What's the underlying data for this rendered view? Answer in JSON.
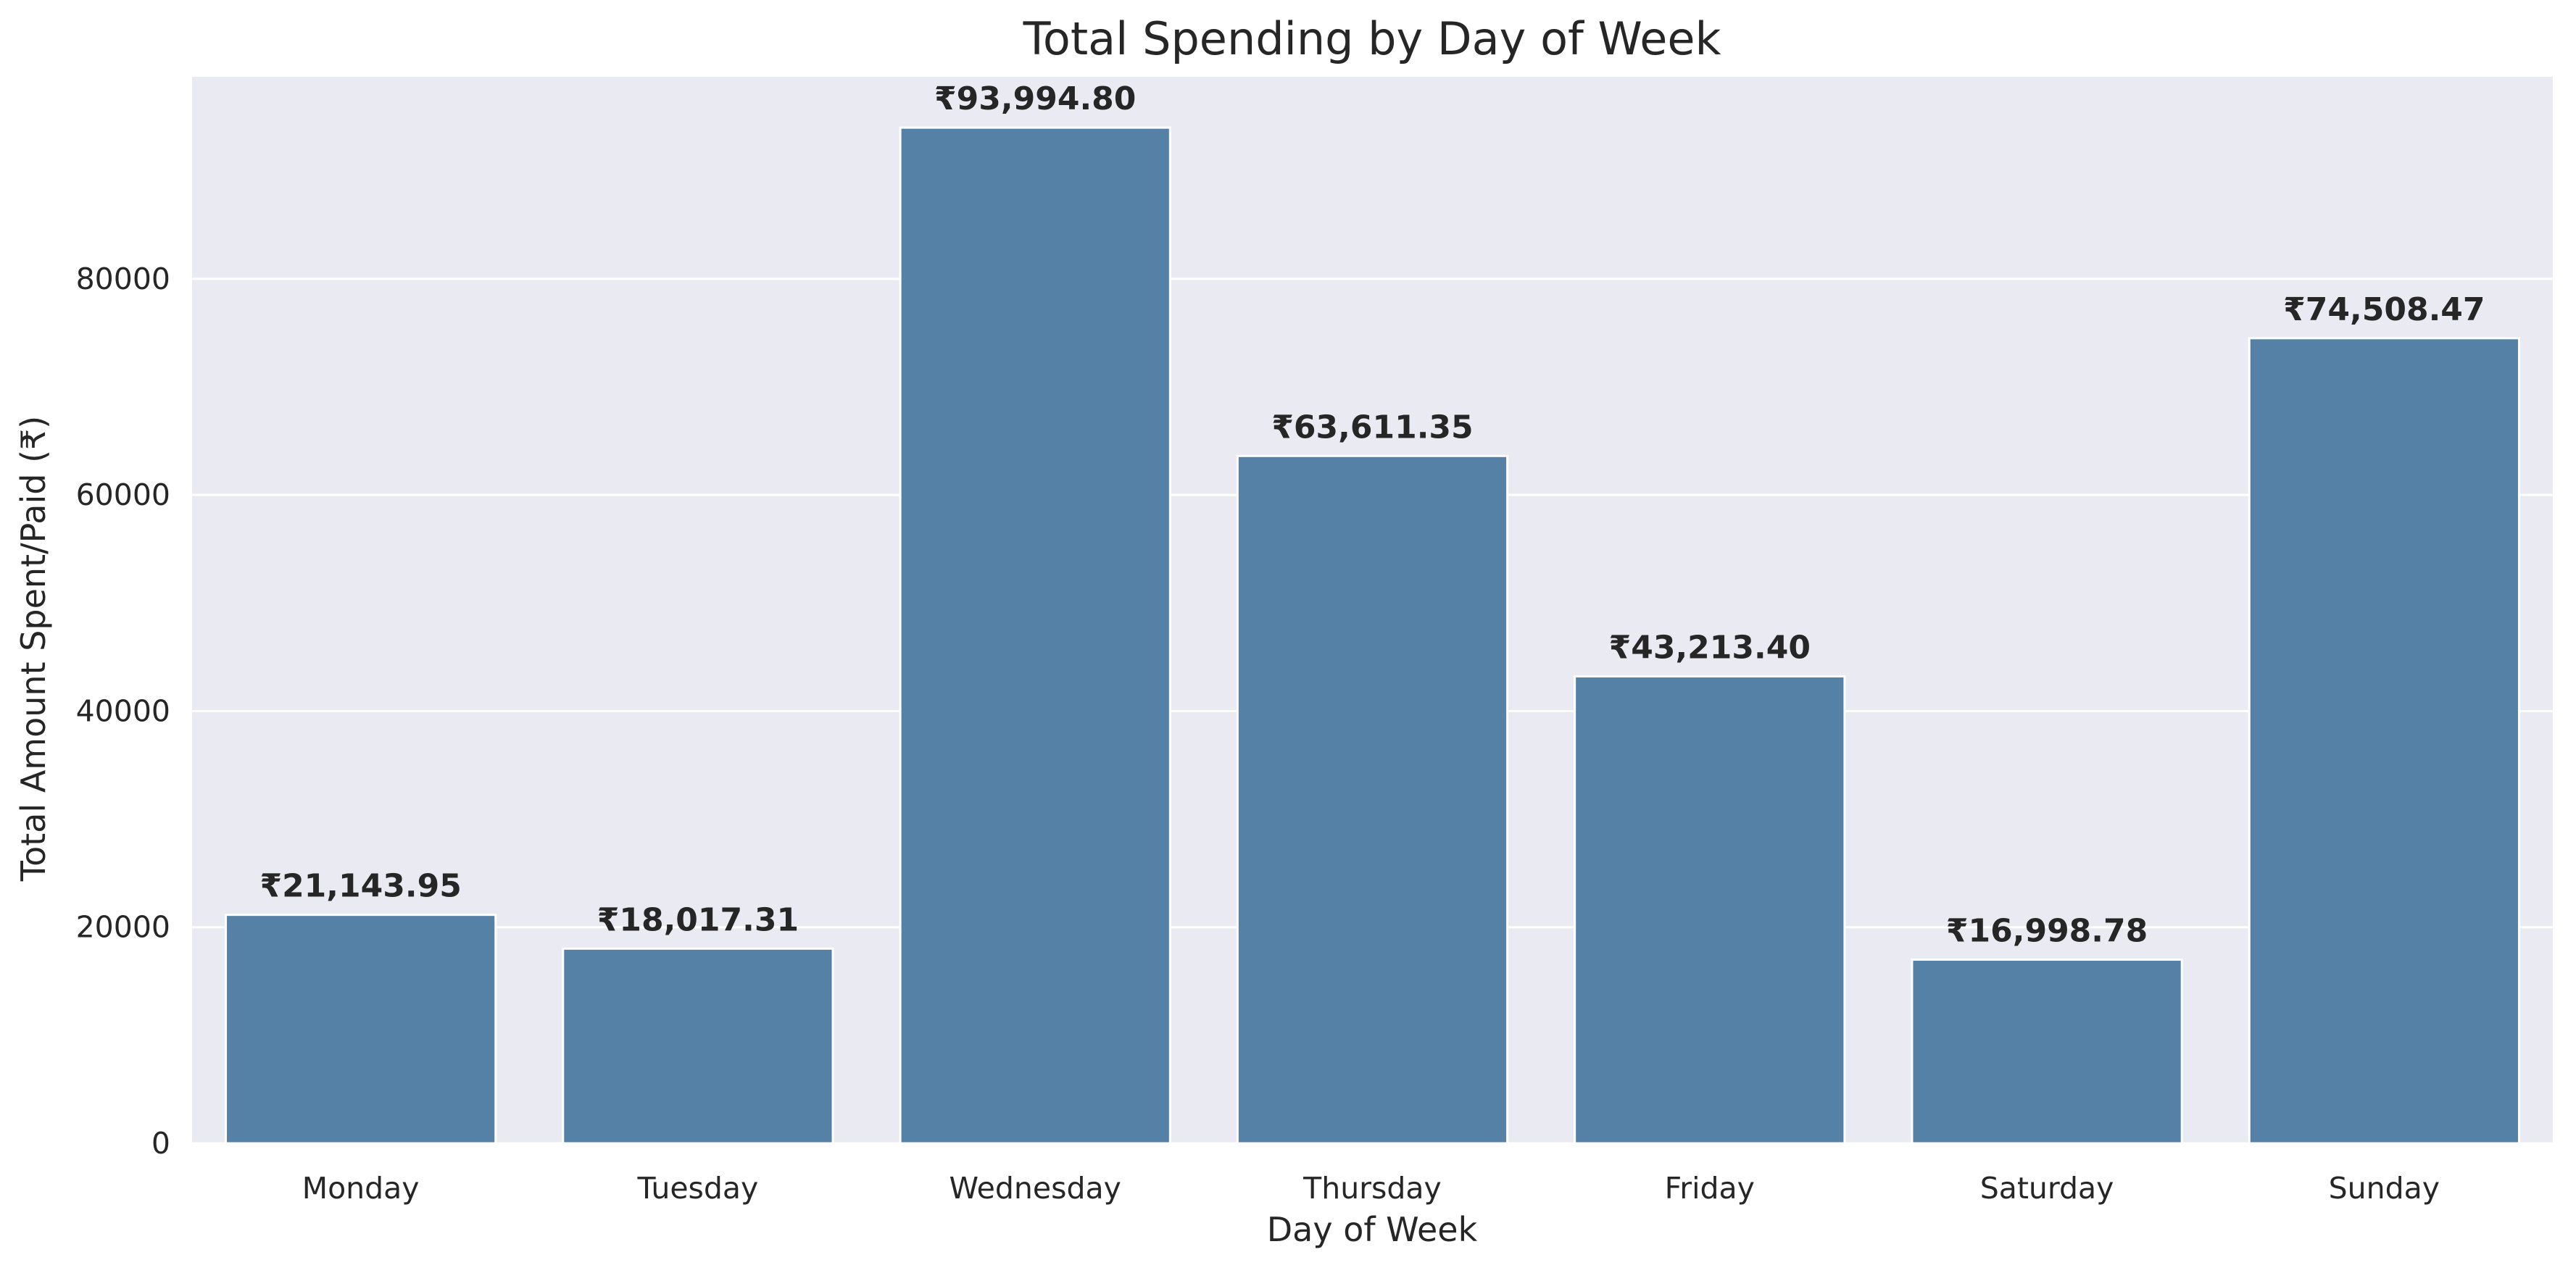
{
  "chart_data": {
    "type": "bar",
    "title": "Total Spending by Day of Week",
    "xlabel": "Day of Week",
    "ylabel": "Total Amount Spent/Paid (₹)",
    "categories": [
      "Monday",
      "Tuesday",
      "Wednesday",
      "Thursday",
      "Friday",
      "Saturday",
      "Sunday"
    ],
    "values": [
      21143.95,
      18017.31,
      93994.8,
      63611.35,
      43213.4,
      16998.78,
      74508.47
    ],
    "value_labels": [
      "₹21,143.95",
      "₹18,017.31",
      "₹93,994.80",
      "₹63,611.35",
      "₹43,213.40",
      "₹16,998.78",
      "₹74,508.47"
    ],
    "ylim": [
      0,
      98700
    ],
    "yticks": [
      0,
      20000,
      40000,
      60000,
      80000
    ],
    "ytick_labels": [
      "0",
      "20000",
      "40000",
      "60000",
      "80000"
    ],
    "grid": true,
    "colors": {
      "bar": "#5581a7",
      "plot_background": "#eaeaf2",
      "grid": "#ffffff",
      "text": "#262626"
    }
  }
}
